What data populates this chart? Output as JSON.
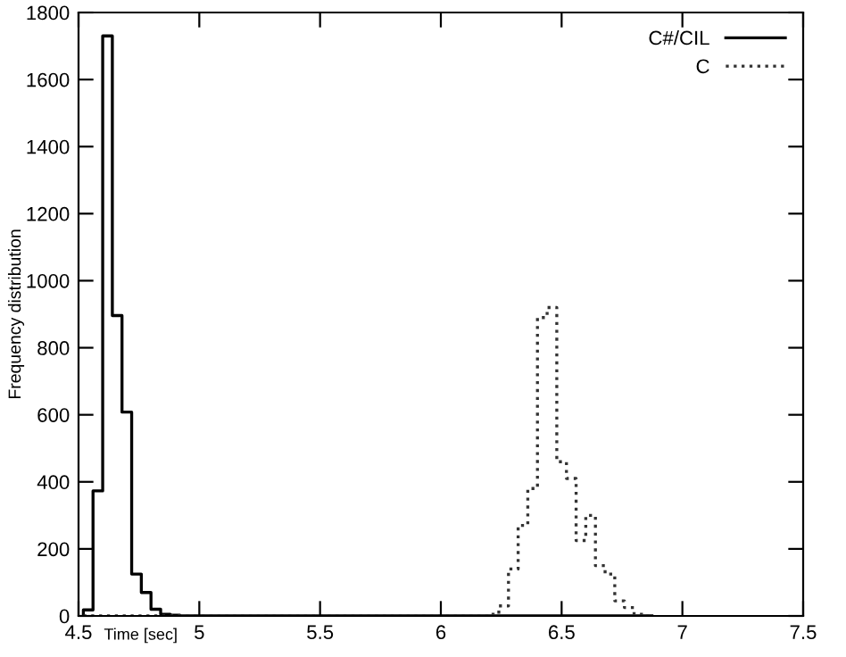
{
  "chart_data": {
    "type": "histogram",
    "xlabel": "Time [sec]",
    "ylabel": "Frequency distribution",
    "bins": [
      4.52,
      4.56,
      4.6,
      4.64,
      4.68,
      4.72,
      4.76,
      4.8,
      4.84,
      4.88,
      4.92,
      4.96,
      5.0,
      5.04,
      5.08,
      5.12,
      5.16,
      5.2,
      5.24,
      5.28,
      5.32,
      5.36,
      5.4,
      5.44,
      5.48,
      5.52,
      5.56,
      5.6,
      5.64,
      5.68,
      5.72,
      5.76,
      5.8,
      5.84,
      5.88,
      5.92,
      5.96,
      6.0,
      6.04,
      6.08,
      6.12,
      6.16,
      6.2,
      6.24,
      6.28,
      6.32,
      6.36,
      6.4,
      6.44,
      6.48,
      6.52,
      6.56,
      6.6,
      6.64,
      6.68,
      6.72,
      6.76,
      6.8,
      6.84,
      6.88
    ],
    "series": [
      {
        "name": "C#/CIL",
        "color": "#000000",
        "line_style": "solid",
        "values": [
          18,
          373,
          1730,
          896,
          608,
          125,
          70,
          20,
          5,
          2,
          0,
          0,
          0,
          0,
          0,
          0,
          0,
          0,
          0,
          0,
          0,
          0,
          0,
          0,
          0,
          0,
          0,
          0,
          0,
          0,
          0,
          0,
          0,
          0,
          0,
          0,
          0,
          0,
          0,
          0,
          0,
          0,
          0,
          0,
          0,
          0,
          0,
          0,
          0,
          0,
          0,
          0,
          0,
          0,
          0,
          0,
          0,
          0,
          0
        ]
      },
      {
        "name": "C",
        "color": "#333333",
        "line_style": "dotted",
        "values": [
          0,
          0,
          0,
          0,
          0,
          0,
          0,
          0,
          0,
          0,
          0,
          0,
          0,
          0,
          0,
          0,
          0,
          0,
          0,
          0,
          0,
          0,
          0,
          0,
          0,
          0,
          0,
          0,
          0,
          0,
          0,
          0,
          0,
          0,
          0,
          0,
          0,
          0,
          0,
          0,
          0,
          0,
          5,
          30,
          140,
          270,
          380,
          890,
          920,
          460,
          410,
          225,
          300,
          150,
          125,
          45,
          25,
          5,
          0
        ]
      }
    ],
    "xlim": [
      4.5,
      7.5
    ],
    "xticks": [
      4.5,
      5,
      5.5,
      6,
      6.5,
      7,
      7.5
    ],
    "ylim": [
      0,
      1800
    ],
    "yticks": [
      0,
      200,
      400,
      600,
      800,
      1000,
      1200,
      1400,
      1600,
      1800
    ],
    "legend": "top right",
    "grid": false
  }
}
